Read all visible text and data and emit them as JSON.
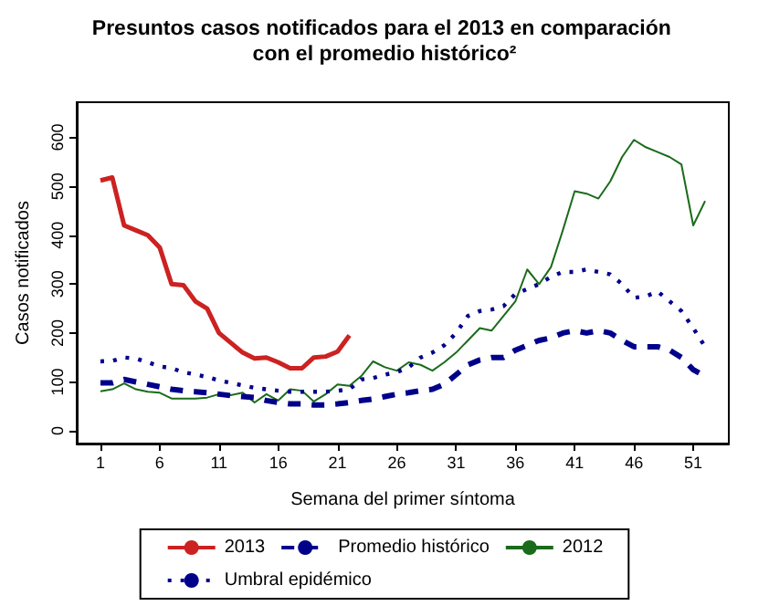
{
  "chart_data": {
    "type": "line",
    "title": "Presuntos casos notificados para el 2013 en comparación con el promedio histórico²",
    "xlabel": "Semana del primer síntoma",
    "ylabel": "Casos notificados",
    "x": [
      1,
      2,
      3,
      4,
      5,
      6,
      7,
      8,
      9,
      10,
      11,
      12,
      13,
      14,
      15,
      16,
      17,
      18,
      19,
      20,
      21,
      22,
      23,
      24,
      25,
      26,
      27,
      28,
      29,
      30,
      31,
      32,
      33,
      34,
      35,
      36,
      37,
      38,
      39,
      40,
      41,
      42,
      43,
      44,
      45,
      46,
      47,
      48,
      49,
      50,
      51,
      52
    ],
    "series": [
      {
        "name": "2013",
        "color": "#cc2222",
        "line_style": "solid",
        "values": [
          512,
          518,
          420,
          410,
          400,
          375,
          300,
          298,
          265,
          250,
          200,
          180,
          160,
          148,
          150,
          140,
          128,
          128,
          150,
          152,
          162,
          195,
          null,
          null,
          null,
          null,
          null,
          null,
          null,
          null,
          null,
          null,
          null,
          null,
          null,
          null,
          null,
          null,
          null,
          null,
          null,
          null,
          null,
          null,
          null,
          null,
          null,
          null,
          null,
          null,
          null,
          null
        ]
      },
      {
        "name": "2012",
        "color": "#1a6b1a",
        "line_style": "solid",
        "values": [
          81,
          85,
          97,
          85,
          80,
          78,
          66,
          66,
          66,
          68,
          75,
          73,
          78,
          58,
          75,
          62,
          85,
          82,
          60,
          75,
          95,
          92,
          112,
          142,
          130,
          123,
          140,
          135,
          123,
          140,
          160,
          185,
          210,
          205,
          235,
          265,
          330,
          300,
          335,
          410,
          490,
          485,
          475,
          510,
          560,
          595,
          580,
          570,
          560,
          545,
          420,
          470
        ]
      },
      {
        "name": "Promedio histórico",
        "color": "#00008b",
        "line_style": "dashed",
        "values": [
          98,
          98,
          105,
          100,
          95,
          90,
          85,
          82,
          80,
          78,
          75,
          72,
          70,
          68,
          62,
          58,
          55,
          55,
          53,
          53,
          55,
          58,
          62,
          65,
          70,
          75,
          78,
          82,
          85,
          95,
          115,
          135,
          145,
          150,
          150,
          165,
          175,
          185,
          190,
          200,
          205,
          200,
          205,
          200,
          185,
          172,
          172,
          172,
          165,
          150,
          125,
          112
        ]
      },
      {
        "name": "Umbral epidémico",
        "color": "#00008b",
        "line_style": "dotted",
        "values": [
          142,
          143,
          150,
          148,
          140,
          132,
          128,
          120,
          115,
          110,
          103,
          98,
          93,
          88,
          85,
          82,
          80,
          80,
          80,
          80,
          82,
          85,
          105,
          108,
          115,
          120,
          130,
          150,
          160,
          175,
          200,
          235,
          245,
          248,
          255,
          280,
          290,
          300,
          315,
          325,
          325,
          330,
          325,
          320,
          300,
          272,
          275,
          285,
          265,
          245,
          210,
          172
        ]
      }
    ],
    "xlim": [
      -1,
      54
    ],
    "xticks": [
      1,
      6,
      11,
      16,
      21,
      26,
      31,
      36,
      41,
      46,
      51
    ],
    "ylim": [
      -26,
      672
    ],
    "yticks": [
      0,
      100,
      200,
      300,
      400,
      500,
      600
    ],
    "grid": false,
    "legend": "bottom",
    "marker": "none"
  }
}
